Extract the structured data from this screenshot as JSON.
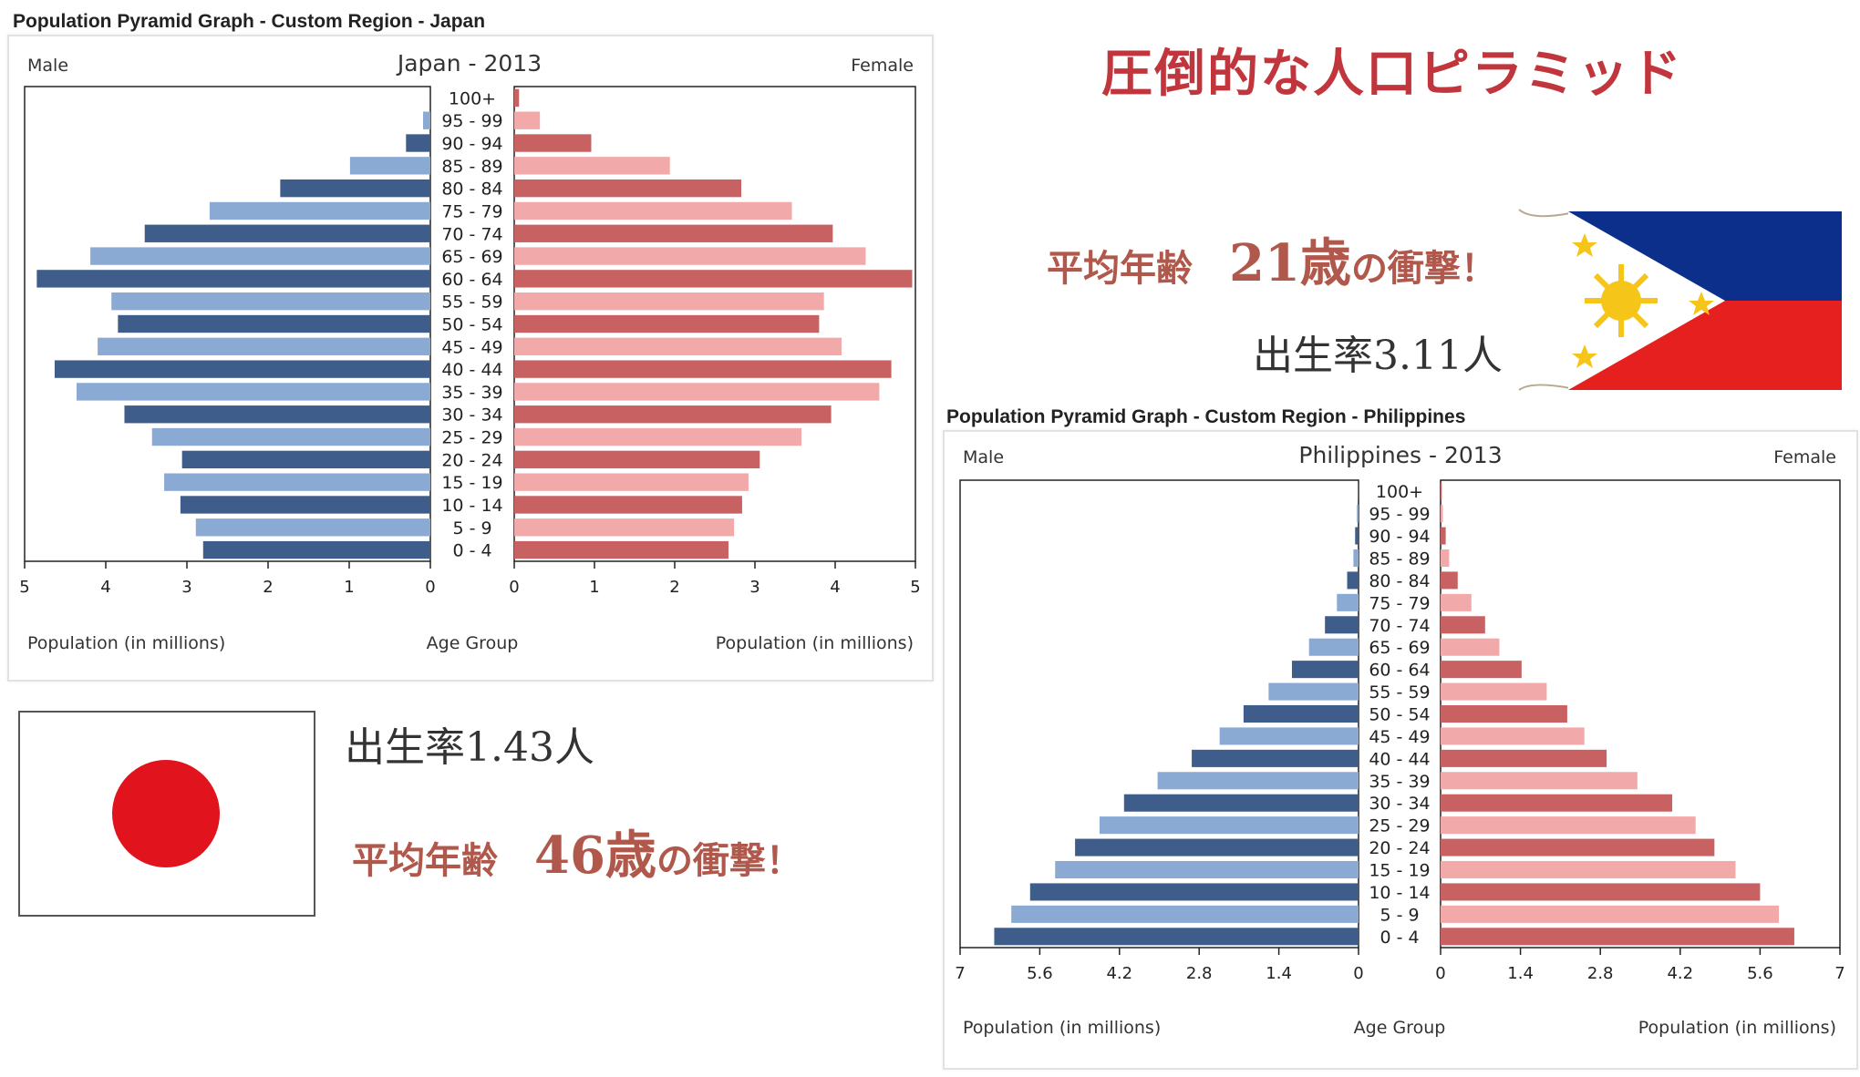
{
  "headline": "圧倒的な人口ピラミッド",
  "japan": {
    "caption": "Population Pyramid Graph - Custom Region - Japan",
    "birth_rate": "出生率1.43人",
    "avg_age_prefix": "平均年齢　",
    "avg_age_value": "46歳",
    "avg_age_suffix": "の衝撃！",
    "flag_icon": "japan-flag-icon"
  },
  "philippines": {
    "caption": "Population Pyramid Graph - Custom Region - Philippines",
    "birth_rate": "出生率3.11人",
    "avg_age_prefix": "平均年齢　",
    "avg_age_value": "21歳",
    "avg_age_suffix": "の衝撃！",
    "flag_icon": "philippines-flag-icon"
  },
  "colors": {
    "male_dark": "#3f5d8a",
    "male_light": "#8aaad4",
    "female_dark": "#c86262",
    "female_light": "#f2a9a9",
    "accent_red": "#c1363c",
    "stat_brown": "#b0584b",
    "ph_blue": "#0d2f8c",
    "ph_red": "#e5201e",
    "ph_sun": "#f6c519",
    "jp_red": "#e1141e"
  },
  "chart_data": [
    {
      "type": "bar",
      "subtype": "population-pyramid",
      "title": "Japan - 2013",
      "male_label": "Male",
      "female_label": "Female",
      "xlabel_left": "Population (in millions)",
      "xlabel_center": "Age Group",
      "xlabel_right": "Population (in millions)",
      "xlim": [
        0,
        5
      ],
      "ticks": [
        "5",
        "4",
        "3",
        "2",
        "1",
        "0"
      ],
      "ticks_right": [
        "0",
        "1",
        "2",
        "3",
        "4",
        "5"
      ],
      "tick_values": [
        5,
        4,
        3,
        2,
        1,
        0
      ],
      "tick_values_right": [
        0,
        1,
        2,
        3,
        4,
        5
      ],
      "categories": [
        "100+",
        "95 - 99",
        "90 - 94",
        "85 - 89",
        "80 - 84",
        "75 - 79",
        "70 - 74",
        "65 - 69",
        "60 - 64",
        "55 - 59",
        "50 - 54",
        "45 - 49",
        "40 - 44",
        "35 - 39",
        "30 - 34",
        "25 - 29",
        "20 - 24",
        "15 - 19",
        "10 - 14",
        "5 - 9",
        "0 - 4"
      ],
      "series": [
        {
          "name": "Male",
          "values": [
            0.01,
            0.09,
            0.3,
            0.99,
            1.85,
            2.72,
            3.52,
            4.19,
            4.85,
            3.93,
            3.85,
            4.1,
            4.63,
            4.36,
            3.77,
            3.43,
            3.06,
            3.28,
            3.08,
            2.89,
            2.8
          ]
        },
        {
          "name": "Female",
          "values": [
            0.06,
            0.32,
            0.96,
            1.94,
            2.83,
            3.46,
            3.97,
            4.38,
            4.96,
            3.86,
            3.8,
            4.08,
            4.7,
            4.55,
            3.95,
            3.58,
            3.06,
            2.92,
            2.84,
            2.74,
            2.67
          ]
        }
      ]
    },
    {
      "type": "bar",
      "subtype": "population-pyramid",
      "title": "Philippines - 2013",
      "male_label": "Male",
      "female_label": "Female",
      "xlabel_left": "Population (in millions)",
      "xlabel_center": "Age Group",
      "xlabel_right": "Population (in millions)",
      "xlim": [
        0,
        7
      ],
      "ticks": [
        "7",
        "5.6",
        "4.2",
        "2.8",
        "1.4",
        "0"
      ],
      "ticks_right": [
        "0",
        "1.4",
        "2.8",
        "4.2",
        "5.6",
        "7"
      ],
      "tick_values": [
        7,
        5.6,
        4.2,
        2.8,
        1.4,
        0
      ],
      "tick_values_right": [
        0,
        1.4,
        2.8,
        4.2,
        5.6,
        7
      ],
      "categories": [
        "100+",
        "95 - 99",
        "90 - 94",
        "85 - 89",
        "80 - 84",
        "75 - 79",
        "70 - 74",
        "65 - 69",
        "60 - 64",
        "55 - 59",
        "50 - 54",
        "45 - 49",
        "40 - 44",
        "35 - 39",
        "30 - 34",
        "25 - 29",
        "20 - 24",
        "15 - 19",
        "10 - 14",
        "5 - 9",
        "0 - 4"
      ],
      "series": [
        {
          "name": "Male",
          "values": [
            0.01,
            0.03,
            0.06,
            0.09,
            0.2,
            0.38,
            0.59,
            0.87,
            1.17,
            1.58,
            2.02,
            2.44,
            2.93,
            3.53,
            4.12,
            4.55,
            4.98,
            5.33,
            5.77,
            6.1,
            6.4
          ]
        },
        {
          "name": "Female",
          "values": [
            0.02,
            0.04,
            0.09,
            0.15,
            0.3,
            0.54,
            0.78,
            1.03,
            1.42,
            1.86,
            2.22,
            2.52,
            2.91,
            3.45,
            4.06,
            4.47,
            4.8,
            5.17,
            5.6,
            5.93,
            6.2
          ]
        }
      ]
    }
  ]
}
